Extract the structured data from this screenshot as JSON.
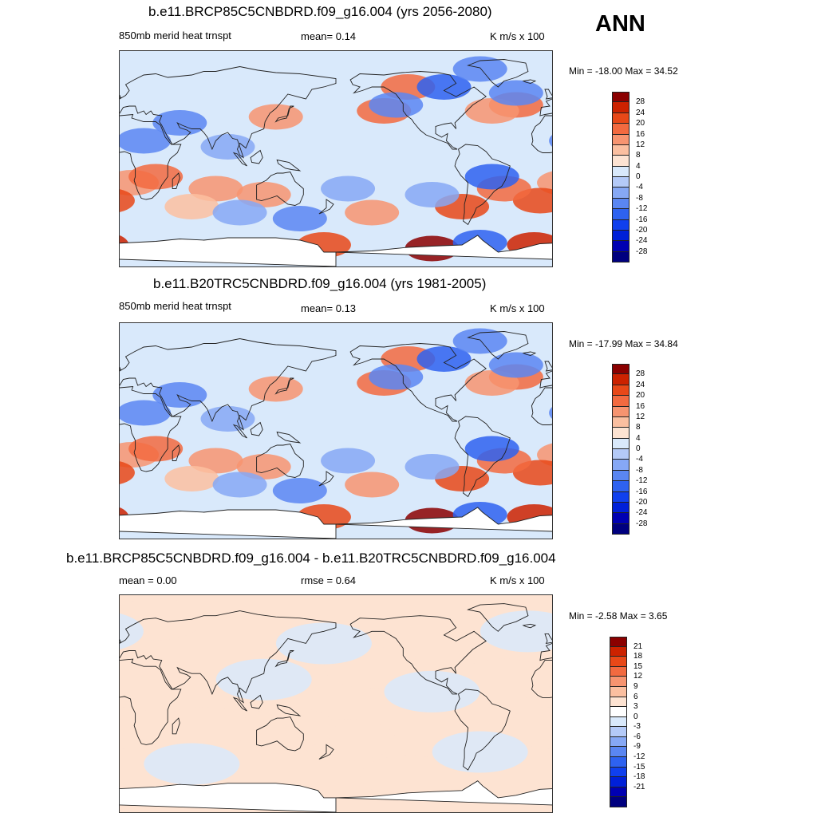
{
  "season_label": "ANN",
  "colors": {
    "land_outline": "#222222",
    "colormap_main": [
      "#00007f",
      "#0000b2",
      "#0020d8",
      "#1040ee",
      "#2e62f0",
      "#5a86f2",
      "#86a8f5",
      "#b4caf8",
      "#d9e9fb",
      "#fde3d2",
      "#fbbfa0",
      "#f79470",
      "#f26a40",
      "#e84818",
      "#cc2200",
      "#8b0000"
    ],
    "colormap_diff": [
      "#00007f",
      "#0000b2",
      "#0020d8",
      "#1040ee",
      "#2e62f0",
      "#5a86f2",
      "#86a8f5",
      "#b4caf8",
      "#d9e9fb",
      "#ffffff",
      "#fde3d2",
      "#fbbfa0",
      "#f79470",
      "#f26a40",
      "#e84818",
      "#cc2200",
      "#8b0000"
    ]
  },
  "chart_data": [
    {
      "type": "heatmap",
      "title": "b.e11.BRCP85C5CNBDRD.f09_g16.004 (yrs 2056-2080)",
      "variable_label": "850mb merid heat trnspt",
      "mean_label": "mean=   0.14",
      "units_label": "K m/s x 100",
      "minmax_label": "Min = -18.00 Max =  34.52",
      "min": -18.0,
      "max": 34.52,
      "mean": 0.14,
      "colorbar_labels": [
        "28",
        "24",
        "20",
        "16",
        "12",
        "8",
        "4",
        "0",
        "-4",
        "-8",
        "-12",
        "-16",
        "-20",
        "-24",
        "-28"
      ],
      "blobs": [
        {
          "lon": -140,
          "lat": 40,
          "v": 12
        },
        {
          "lon": -120,
          "lat": 60,
          "v": 14
        },
        {
          "lon": -150,
          "lat": -45,
          "v": 8
        },
        {
          "lon": -30,
          "lat": 45,
          "v": 14
        },
        {
          "lon": -50,
          "lat": 40,
          "v": 10
        },
        {
          "lon": 10,
          "lat": -20,
          "v": 10
        },
        {
          "lon": -10,
          "lat": -35,
          "v": 16
        },
        {
          "lon": -40,
          "lat": -25,
          "v": 12
        },
        {
          "lon": -75,
          "lat": -40,
          "v": 16
        },
        {
          "lon": 120,
          "lat": -30,
          "v": 10
        },
        {
          "lon": 80,
          "lat": -25,
          "v": 8
        },
        {
          "lon": 60,
          "lat": -40,
          "v": 6
        },
        {
          "lon": 130,
          "lat": 35,
          "v": 8
        },
        {
          "lon": -15,
          "lat": -72,
          "v": 22
        },
        {
          "lon": 170,
          "lat": -72,
          "v": 18
        },
        {
          "lon": -100,
          "lat": -75,
          "v": 24
        },
        {
          "lon": 30,
          "lat": -15,
          "v": 12
        },
        {
          "lon": -130,
          "lat": 45,
          "v": -12
        },
        {
          "lon": -90,
          "lat": 60,
          "v": -16
        },
        {
          "lon": -60,
          "lat": 75,
          "v": -10
        },
        {
          "lon": -30,
          "lat": 55,
          "v": -12
        },
        {
          "lon": -50,
          "lat": -15,
          "v": -14
        },
        {
          "lon": -100,
          "lat": -30,
          "v": -8
        },
        {
          "lon": 150,
          "lat": -50,
          "v": -10
        },
        {
          "lon": 100,
          "lat": -45,
          "v": -8
        },
        {
          "lon": 50,
          "lat": 30,
          "v": -10
        },
        {
          "lon": 20,
          "lat": 15,
          "v": -10
        },
        {
          "lon": -170,
          "lat": -25,
          "v": -6
        },
        {
          "lon": -60,
          "lat": -70,
          "v": -14
        },
        {
          "lon": 90,
          "lat": 10,
          "v": -6
        }
      ]
    },
    {
      "type": "heatmap",
      "title": "b.e11.B20TRC5CNBDRD.f09_g16.004 (yrs 1981-2005)",
      "variable_label": "850mb merid heat trnspt",
      "mean_label": "mean=   0.13",
      "units_label": "K m/s x 100",
      "minmax_label": "Min = -17.99 Max =  34.84",
      "min": -17.99,
      "max": 34.84,
      "mean": 0.13,
      "colorbar_labels": [
        "28",
        "24",
        "20",
        "16",
        "12",
        "8",
        "4",
        "0",
        "-4",
        "-8",
        "-12",
        "-16",
        "-20",
        "-24",
        "-28"
      ],
      "blobs": [
        {
          "lon": -140,
          "lat": 40,
          "v": 12
        },
        {
          "lon": -120,
          "lat": 60,
          "v": 14
        },
        {
          "lon": -150,
          "lat": -45,
          "v": 8
        },
        {
          "lon": -30,
          "lat": 45,
          "v": 14
        },
        {
          "lon": -50,
          "lat": 40,
          "v": 10
        },
        {
          "lon": 10,
          "lat": -20,
          "v": 10
        },
        {
          "lon": -10,
          "lat": -35,
          "v": 16
        },
        {
          "lon": -40,
          "lat": -25,
          "v": 12
        },
        {
          "lon": -75,
          "lat": -40,
          "v": 16
        },
        {
          "lon": 120,
          "lat": -30,
          "v": 10
        },
        {
          "lon": 80,
          "lat": -25,
          "v": 8
        },
        {
          "lon": 60,
          "lat": -40,
          "v": 6
        },
        {
          "lon": 130,
          "lat": 35,
          "v": 8
        },
        {
          "lon": -15,
          "lat": -72,
          "v": 22
        },
        {
          "lon": 170,
          "lat": -72,
          "v": 18
        },
        {
          "lon": -100,
          "lat": -75,
          "v": 24
        },
        {
          "lon": 30,
          "lat": -15,
          "v": 12
        },
        {
          "lon": -130,
          "lat": 45,
          "v": -12
        },
        {
          "lon": -90,
          "lat": 60,
          "v": -16
        },
        {
          "lon": -60,
          "lat": 75,
          "v": -10
        },
        {
          "lon": -30,
          "lat": 55,
          "v": -12
        },
        {
          "lon": -50,
          "lat": -15,
          "v": -14
        },
        {
          "lon": -100,
          "lat": -30,
          "v": -8
        },
        {
          "lon": 150,
          "lat": -50,
          "v": -10
        },
        {
          "lon": 100,
          "lat": -45,
          "v": -8
        },
        {
          "lon": 50,
          "lat": 30,
          "v": -10
        },
        {
          "lon": 20,
          "lat": 15,
          "v": -10
        },
        {
          "lon": -170,
          "lat": -25,
          "v": -6
        },
        {
          "lon": -60,
          "lat": -70,
          "v": -14
        },
        {
          "lon": 90,
          "lat": 10,
          "v": -6
        }
      ]
    },
    {
      "type": "heatmap",
      "title": "b.e11.BRCP85C5CNBDRD.f09_g16.004 - b.e11.B20TRC5CNBDRD.f09_g16.004",
      "mean_label": "mean =   0.00",
      "rmse_label": "rmse =   0.64",
      "units_label": "K m/s x 100",
      "minmax_label": "Min =  -2.58 Max =   3.65",
      "min": -2.58,
      "max": 3.65,
      "mean": 0.0,
      "rmse": 0.64,
      "colorbar_labels": [
        "21",
        "18",
        "15",
        "12",
        "9",
        "6",
        "3",
        "0",
        "-3",
        "-6",
        "-9",
        "-12",
        "-15",
        "-18",
        "-21"
      ],
      "blobs": [
        {
          "lon": -150,
          "lat": 30,
          "v": 1
        },
        {
          "lon": -170,
          "lat": -30,
          "v": 1
        },
        {
          "lon": 0,
          "lat": -20,
          "v": 1
        },
        {
          "lon": -40,
          "lat": 20,
          "v": 1
        },
        {
          "lon": 70,
          "lat": -20,
          "v": 1
        },
        {
          "lon": 140,
          "lat": -20,
          "v": 1
        },
        {
          "lon": -120,
          "lat": -60,
          "v": 1
        },
        {
          "lon": 30,
          "lat": 70,
          "v": 1
        },
        {
          "lon": -100,
          "lat": 10,
          "v": -1
        },
        {
          "lon": 120,
          "lat": 20,
          "v": -1
        },
        {
          "lon": -20,
          "lat": 60,
          "v": -1
        },
        {
          "lon": 60,
          "lat": -50,
          "v": -1
        },
        {
          "lon": -60,
          "lat": -40,
          "v": -1
        },
        {
          "lon": 170,
          "lat": 50,
          "v": -1
        }
      ]
    }
  ]
}
